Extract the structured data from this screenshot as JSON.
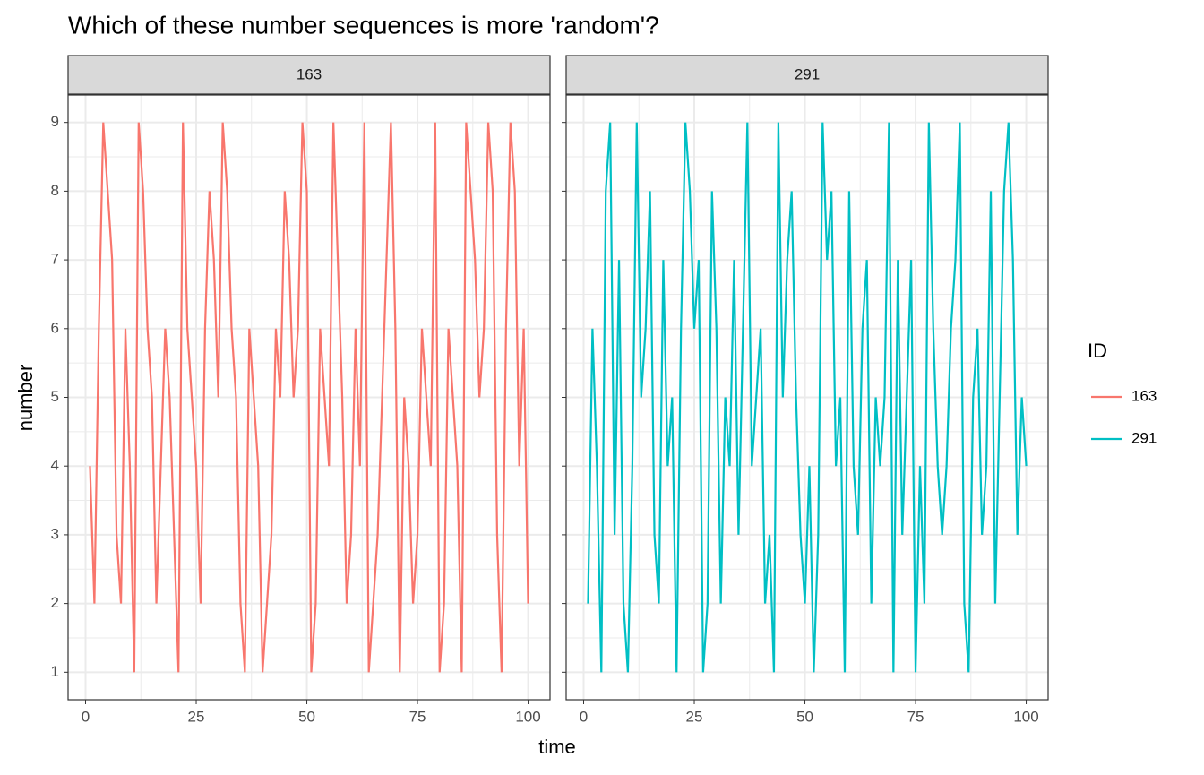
{
  "chart_data": {
    "type": "line",
    "title": "Which of these number sequences is more 'random'?",
    "x_label": "time",
    "y_label": "number",
    "legend_title": "ID",
    "x": [
      1,
      2,
      3,
      4,
      5,
      6,
      7,
      8,
      9,
      10,
      11,
      12,
      13,
      14,
      15,
      16,
      17,
      18,
      19,
      20,
      21,
      22,
      23,
      24,
      25,
      26,
      27,
      28,
      29,
      30,
      31,
      32,
      33,
      34,
      35,
      36,
      37,
      38,
      39,
      40,
      41,
      42,
      43,
      44,
      45,
      46,
      47,
      48,
      49,
      50,
      51,
      52,
      53,
      54,
      55,
      56,
      57,
      58,
      59,
      60,
      61,
      62,
      63,
      64,
      65,
      66,
      67,
      68,
      69,
      70,
      71,
      72,
      73,
      74,
      75,
      76,
      77,
      78,
      79,
      80,
      81,
      82,
      83,
      84,
      85,
      86,
      87,
      88,
      89,
      90,
      91,
      92,
      93,
      94,
      95,
      96,
      97,
      98,
      99,
      100
    ],
    "series": [
      {
        "name": "163",
        "color": "#F8766D",
        "values": [
          4,
          2,
          6,
          9,
          8,
          7,
          3,
          2,
          6,
          4,
          1,
          9,
          8,
          6,
          5,
          2,
          4,
          6,
          5,
          3,
          1,
          9,
          6,
          5,
          4,
          2,
          6,
          8,
          7,
          5,
          9,
          8,
          6,
          5,
          2,
          1,
          6,
          5,
          4,
          1,
          2,
          3,
          6,
          5,
          8,
          7,
          5,
          6,
          9,
          8,
          1,
          2,
          6,
          5,
          4,
          9,
          7,
          5,
          2,
          3,
          6,
          4,
          9,
          1,
          2,
          3,
          5,
          7,
          9,
          6,
          1,
          5,
          4,
          2,
          3,
          6,
          5,
          4,
          9,
          1,
          2,
          6,
          5,
          4,
          1,
          9,
          8,
          7,
          5,
          6,
          9,
          8,
          3,
          1,
          6,
          9,
          8,
          4,
          6,
          2
        ]
      },
      {
        "name": "291",
        "color": "#00BFC4",
        "values": [
          2,
          6,
          4,
          1,
          8,
          9,
          3,
          7,
          2,
          1,
          4,
          9,
          5,
          6,
          8,
          3,
          2,
          7,
          4,
          5,
          1,
          6,
          9,
          8,
          6,
          7,
          1,
          2,
          8,
          6,
          2,
          5,
          4,
          7,
          3,
          6,
          9,
          4,
          5,
          6,
          2,
          3,
          1,
          9,
          5,
          7,
          8,
          5,
          3,
          2,
          4,
          1,
          3,
          9,
          7,
          8,
          4,
          5,
          1,
          8,
          4,
          3,
          6,
          7,
          2,
          5,
          4,
          5,
          9,
          1,
          7,
          3,
          5,
          7,
          1,
          4,
          2,
          9,
          6,
          4,
          3,
          4,
          6,
          7,
          9,
          2,
          1,
          5,
          6,
          3,
          4,
          8,
          2,
          5,
          8,
          9,
          7,
          3,
          5,
          4
        ]
      }
    ],
    "xlim": [
      -3.95,
      104.95
    ],
    "ylim": [
      0.6,
      9.4
    ],
    "xticks": [
      0,
      25,
      50,
      75,
      100
    ],
    "yticks": [
      1,
      2,
      3,
      4,
      5,
      6,
      7,
      8,
      9
    ],
    "grid": true
  }
}
